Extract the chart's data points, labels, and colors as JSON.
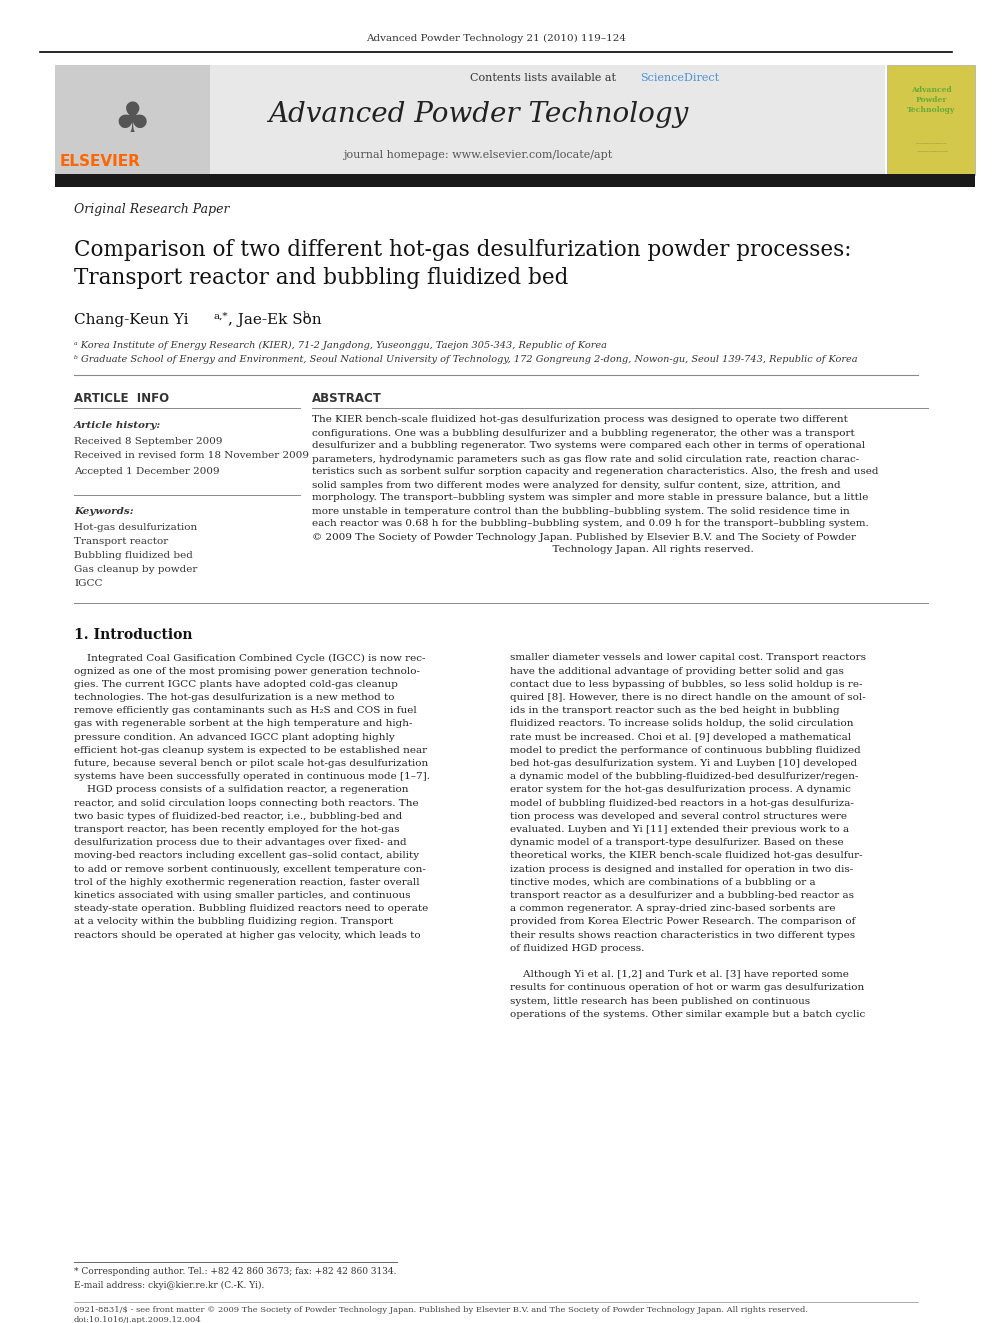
{
  "page_bg": "#ffffff",
  "top_citation": "Advanced Powder Technology 21 (2010) 119–124",
  "journal_name": "Advanced Powder Technology",
  "contents_line": "Contents lists available at ScienceDirect",
  "sciencedirect_color": "#4a90d9",
  "journal_homepage": "journal homepage: www.elsevier.com/locate/apt",
  "header_bg": "#e8e8e8",
  "black_bar_color": "#1a1a1a",
  "article_type": "Original Research Paper",
  "title_line1": "Comparison of two different hot-gas desulfurization powder processes:",
  "title_line2": "Transport reactor and bubbling fluidized bed",
  "authors": "Chang-Keun Yi",
  "author_sup1": "a,*",
  "author2": ", Jae-Ek Son",
  "author_sup2": "b",
  "affil1": "ᵃ Korea Institute of Energy Research (KIER), 71-2 Jangdong, Yuseonggu, Taejon 305-343, Republic of Korea",
  "affil2": "ᵇ Graduate School of Energy and Environment, Seoul National University of Technology, 172 Gongreung 2-dong, Nowon-gu, Seoul 139-743, Republic of Korea",
  "section_article_info": "ARTICLE  INFO",
  "section_abstract": "ABSTRACT",
  "article_history_label": "Article history:",
  "received1": "Received 8 September 2009",
  "received2": "Received in revised form 18 November 2009",
  "accepted": "Accepted 1 December 2009",
  "keywords_label": "Keywords:",
  "keywords": [
    "Hot-gas desulfurization",
    "Transport reactor",
    "Bubbling fluidized bed",
    "Gas cleanup by powder",
    "IGCC"
  ],
  "abstract_lines": [
    "The KIER bench-scale fluidized hot-gas desulfurization process was designed to operate two different",
    "configurations. One was a bubbling desulfurizer and a bubbling regenerator, the other was a transport",
    "desulfurizer and a bubbling regenerator. Two systems were compared each other in terms of operational",
    "parameters, hydrodynamic parameters such as gas flow rate and solid circulation rate, reaction charac-",
    "teristics such as sorbent sulfur sorption capacity and regeneration characteristics. Also, the fresh and used",
    "solid samples from two different modes were analyzed for density, sulfur content, size, attrition, and",
    "morphology. The transport–bubbling system was simpler and more stable in pressure balance, but a little",
    "more unstable in temperature control than the bubbling–bubbling system. The solid residence time in",
    "each reactor was 0.68 h for the bubbling–bubbling system, and 0.09 h for the transport–bubbling system.",
    "© 2009 The Society of Powder Technology Japan. Published by Elsevier B.V. and The Society of Powder",
    "                                                                          Technology Japan. All rights reserved."
  ],
  "intro_heading": "1. Introduction",
  "left_intro_lines": [
    "    Integrated Coal Gasification Combined Cycle (IGCC) is now rec-",
    "ognized as one of the most promising power generation technolo-",
    "gies. The current IGCC plants have adopted cold-gas cleanup",
    "technologies. The hot-gas desulfurization is a new method to",
    "remove efficiently gas contaminants such as H₂S and COS in fuel",
    "gas with regenerable sorbent at the high temperature and high-",
    "pressure condition. An advanced IGCC plant adopting highly",
    "efficient hot-gas cleanup system is expected to be established near",
    "future, because several bench or pilot scale hot-gas desulfurization",
    "systems have been successfully operated in continuous mode [1–7].",
    "    HGD process consists of a sulfidation reactor, a regeneration",
    "reactor, and solid circulation loops connecting both reactors. The",
    "two basic types of fluidized-bed reactor, i.e., bubbling-bed and",
    "transport reactor, has been recently employed for the hot-gas",
    "desulfurization process due to their advantages over fixed- and",
    "moving-bed reactors including excellent gas–solid contact, ability",
    "to add or remove sorbent continuously, excellent temperature con-",
    "trol of the highly exothermic regeneration reaction, faster overall",
    "kinetics associated with using smaller particles, and continuous",
    "steady-state operation. Bubbling fluidized reactors need to operate",
    "at a velocity within the bubbling fluidizing region. Transport",
    "reactors should be operated at higher gas velocity, which leads to"
  ],
  "right_intro_lines": [
    "smaller diameter vessels and lower capital cost. Transport reactors",
    "have the additional advantage of providing better solid and gas",
    "contact due to less bypassing of bubbles, so less solid holdup is re-",
    "quired [8]. However, there is no direct handle on the amount of sol-",
    "ids in the transport reactor such as the bed height in bubbling",
    "fluidized reactors. To increase solids holdup, the solid circulation",
    "rate must be increased. Choi et al. [9] developed a mathematical",
    "model to predict the performance of continuous bubbling fluidized",
    "bed hot-gas desulfurization system. Yi and Luyben [10] developed",
    "a dynamic model of the bubbling-fluidized-bed desulfurizer/regen-",
    "erator system for the hot-gas desulfurization process. A dynamic",
    "model of bubbling fluidized-bed reactors in a hot-gas desulfuriza-",
    "tion process was developed and several control structures were",
    "evaluated. Luyben and Yi [11] extended their previous work to a",
    "dynamic model of a transport-type desulfurizer. Based on these",
    "theoretical works, the KIER bench-scale fluidized hot-gas desulfur-",
    "ization process is designed and installed for operation in two dis-",
    "tinctive modes, which are combinations of a bubbling or a",
    "transport reactor as a desulfurizer and a bubbling-bed reactor as",
    "a common regenerator. A spray-dried zinc-based sorbents are",
    "provided from Korea Electric Power Research. The comparison of",
    "their results shows reaction characteristics in two different types",
    "of fluidized HGD process."
  ],
  "right_intro_lines2": [
    "    Although Yi et al. [1,2] and Turk et al. [3] have reported some",
    "results for continuous operation of hot or warm gas desulfurization",
    "system, little research has been published on continuous",
    "operations of the systems. Other similar example but a batch cyclic"
  ],
  "footnote_star": "* Corresponding author. Tel.: +82 42 860 3673; fax: +82 42 860 3134.",
  "footnote_email": "E-mail address: ckyi@kier.re.kr (C.-K. Yi).",
  "bottom_bar1": "0921-8831/$ - see front matter © 2009 The Society of Powder Technology Japan. Published by Elsevier B.V. and The Society of Powder Technology Japan. All rights reserved.",
  "bottom_bar2": "doi:10.1016/j.apt.2009.12.004",
  "elsevier_orange": "#FF6600",
  "cover_bg": "#d4c84a",
  "cover_text_color": "#6aaa3a"
}
